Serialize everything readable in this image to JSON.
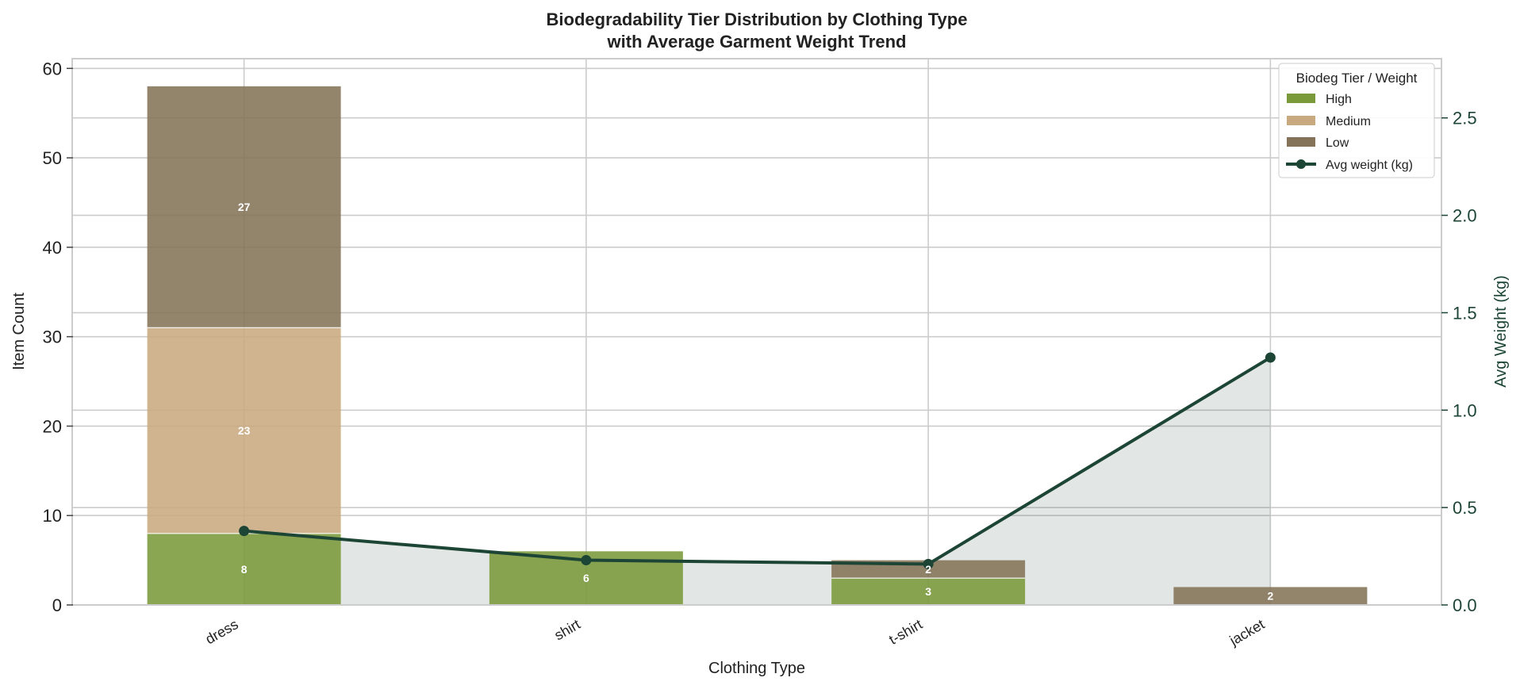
{
  "chart_data": {
    "type": "bar",
    "stacked": true,
    "title": "Biodegradability Tier Distribution by Clothing Type",
    "subtitle": "with Average Garment Weight Trend",
    "xlabel": "Clothing Type",
    "ylabel": "Item Count",
    "y2label": "Avg Weight (kg)",
    "categories": [
      "dress",
      "shirt",
      "t-shirt",
      "jacket"
    ],
    "series": [
      {
        "name": "High",
        "color": "#7a9a3a",
        "values": [
          8,
          6,
          3,
          0
        ]
      },
      {
        "name": "Medium",
        "color": "#c9aa80",
        "values": [
          23,
          0,
          0,
          0
        ]
      },
      {
        "name": "Low",
        "color": "#847358",
        "values": [
          27,
          0,
          2,
          2
        ]
      }
    ],
    "line_series": {
      "name": "Avg weight (kg)",
      "axis": "right",
      "color": "#1d4535",
      "values": [
        0.38,
        0.23,
        0.21,
        1.27
      ]
    },
    "ylim": [
      0,
      61
    ],
    "y2lim": [
      0,
      2.8
    ],
    "y_ticks": [
      "0",
      "10",
      "20",
      "30",
      "40",
      "50",
      "60"
    ],
    "y2_ticks": [
      "0.0",
      "0.5",
      "1.0",
      "1.5",
      "2.0",
      "2.5"
    ],
    "grid": true,
    "legend": {
      "title": "Biodeg Tier / Weight",
      "placement": "top-right"
    }
  }
}
